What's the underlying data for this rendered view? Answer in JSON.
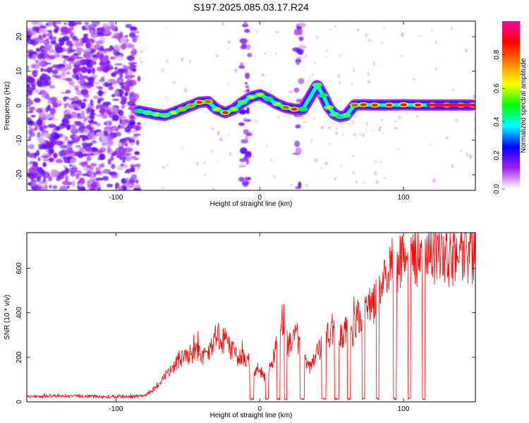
{
  "title": "S197.2025.085.03.17.R24",
  "chart_data": [
    {
      "type": "heatmap",
      "xlabel": "Height of straight line (km)",
      "ylabel": "Frequency (Hz)",
      "xlim": [
        -162,
        150
      ],
      "ylim": [
        -24.5,
        24.5
      ],
      "x_ticks": [
        -100,
        0,
        100
      ],
      "x_tick_labels": [
        "-100",
        "0",
        "100"
      ],
      "y_ticks": [
        -20,
        -10,
        0,
        10,
        20
      ],
      "y_tick_labels": [
        "-20",
        "-10",
        "0",
        "10",
        "20"
      ],
      "colorbar": {
        "label": "Normalized spectral amplitude",
        "range": [
          0,
          1
        ],
        "ticks": [
          0,
          0.2,
          0.4,
          0.6,
          0.8
        ],
        "tick_labels": [
          "0.0",
          "0.2",
          "0.4",
          "0.6",
          "0.8"
        ],
        "colors": [
          "#ffffff",
          "#a020f0",
          "#0000ff",
          "#00ffff",
          "#00ff00",
          "#ffff00",
          "#ff8000",
          "#ff0000",
          "#ff00a0"
        ]
      },
      "ridge": {
        "x": [
          -84,
          -78,
          -72,
          -66,
          -60,
          -54,
          -48,
          -42,
          -36,
          -30,
          -24,
          -18,
          -12,
          -6,
          0,
          6,
          12,
          18,
          24,
          30,
          40,
          44,
          48,
          52,
          56,
          60,
          66,
          72,
          80,
          90,
          100,
          110,
          120,
          130,
          140,
          148
        ],
        "y": [
          -1.5,
          -2.0,
          -2.5,
          -2.8,
          -2.0,
          -1.0,
          0.0,
          1.0,
          1.2,
          -1.0,
          -2.0,
          -1.0,
          1.0,
          2.5,
          3.2,
          2.0,
          0.5,
          -0.5,
          -1.0,
          -1.0,
          6.0,
          3.0,
          -0.5,
          -2.5,
          -3.2,
          -2.8,
          0.2,
          0.3,
          0.2,
          0.2,
          0.3,
          0.2,
          0.2,
          0.2,
          0.2,
          0.2
        ],
        "amplitude": [
          0.5,
          0.55,
          0.6,
          0.55,
          0.65,
          0.7,
          0.75,
          0.85,
          0.8,
          0.6,
          0.85,
          0.6,
          0.55,
          0.6,
          0.65,
          0.5,
          0.6,
          0.8,
          0.85,
          0.5,
          0.55,
          0.5,
          0.6,
          0.55,
          0.5,
          0.55,
          0.8,
          0.85,
          0.85,
          0.85,
          0.9,
          0.9,
          0.95,
          0.95,
          0.95,
          0.95
        ]
      },
      "noise_regions_x": [
        [
          -162,
          -84
        ],
        [
          -13,
          -7
        ],
        [
          25,
          30
        ]
      ]
    },
    {
      "type": "line",
      "xlabel": "Height of straight line (km)",
      "ylabel": "SNR (10 * v/v)",
      "xlim": [
        -162,
        150
      ],
      "ylim": [
        0,
        760
      ],
      "x_ticks": [
        -100,
        0,
        100
      ],
      "x_tick_labels": [
        "-100",
        "0",
        "100"
      ],
      "y_ticks": [
        0,
        200,
        400,
        600
      ],
      "y_tick_labels": [
        "0",
        "200",
        "400",
        "600"
      ],
      "series": [
        {
          "color": "#ff0000",
          "x": [
            -162,
            -150,
            -140,
            -130,
            -120,
            -110,
            -100,
            -90,
            -85,
            -80,
            -75,
            -70,
            -65,
            -60,
            -55,
            -50,
            -45,
            -40,
            -35,
            -30,
            -27,
            -24,
            -20,
            -15,
            -10,
            -5,
            0,
            5,
            10,
            15,
            20,
            25,
            30,
            35,
            40,
            45,
            50,
            55,
            60,
            63,
            68,
            72,
            75,
            80,
            85,
            90,
            95,
            100,
            105,
            110,
            115,
            120,
            125,
            130,
            135,
            140,
            145,
            150
          ],
          "y": [
            25,
            25,
            28,
            25,
            25,
            22,
            25,
            22,
            25,
            30,
            50,
            80,
            130,
            160,
            190,
            200,
            230,
            200,
            220,
            330,
            260,
            280,
            230,
            200,
            200,
            150,
            140,
            100,
            210,
            330,
            250,
            300,
            200,
            150,
            220,
            260,
            330,
            280,
            330,
            270,
            390,
            400,
            430,
            450,
            510,
            600,
            620,
            640,
            640,
            660,
            650,
            650,
            650,
            660,
            660,
            660,
            670,
            680
          ]
        }
      ],
      "dropouts": [
        [
          -7,
          -4
        ],
        [
          4,
          6
        ],
        [
          12,
          14
        ],
        [
          17,
          19
        ],
        [
          28,
          31
        ],
        [
          43,
          46
        ],
        [
          52,
          55
        ],
        [
          61,
          63
        ],
        [
          71,
          73
        ],
        [
          81,
          83
        ],
        [
          93,
          95
        ],
        [
          103,
          105
        ],
        [
          113,
          115
        ]
      ]
    }
  ]
}
